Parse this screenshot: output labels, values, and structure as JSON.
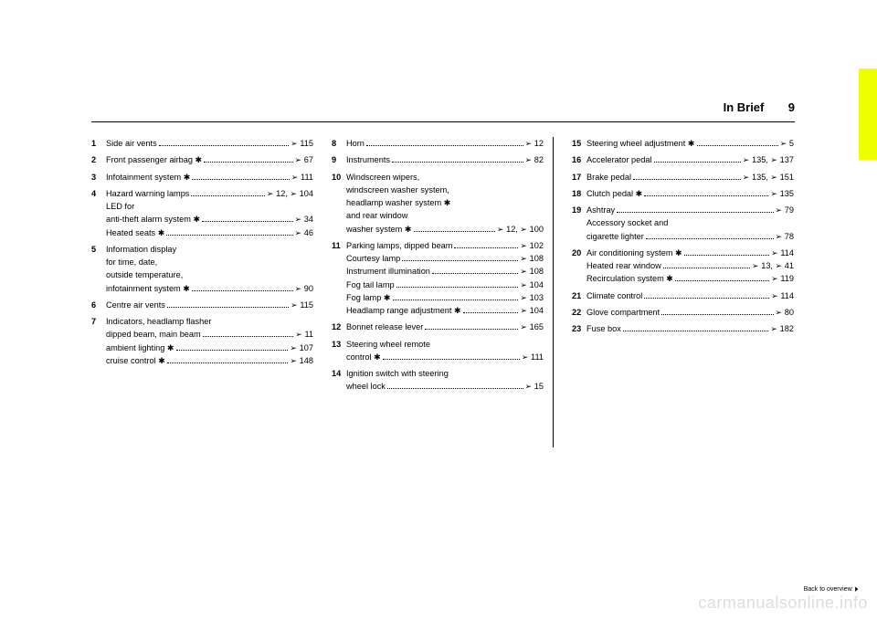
{
  "header": {
    "title": "In Brief",
    "page": "9"
  },
  "symbols": {
    "ref": "➢",
    "opt": "✱"
  },
  "columns": [
    [
      {
        "n": "1",
        "lines": [
          {
            "t": "Side air vents",
            "r": "➢ 115"
          }
        ]
      },
      {
        "n": "2",
        "lines": [
          {
            "t": "Front passenger airbag ✱",
            "r": "➢ 67"
          }
        ]
      },
      {
        "n": "3",
        "lines": [
          {
            "t": "Infotainment system ✱",
            "r": "➢ 111"
          }
        ]
      },
      {
        "n": "4",
        "lines": [
          {
            "t": "Hazard warning lamps",
            "r": "➢ 12, ➢ 104"
          },
          {
            "t": "LED for",
            "r": "",
            "nodots": true
          },
          {
            "t": "anti-theft alarm system ✱",
            "r": "➢ 34"
          },
          {
            "t": "Heated seats ✱",
            "r": "➢ 46"
          }
        ]
      },
      {
        "n": "5",
        "lines": [
          {
            "t": "Information display",
            "r": "",
            "nodots": true
          },
          {
            "t": "for time, date,",
            "r": "",
            "nodots": true
          },
          {
            "t": "outside temperature,",
            "r": "",
            "nodots": true
          },
          {
            "t": "infotainment system ✱",
            "r": "➢ 90"
          }
        ]
      },
      {
        "n": "6",
        "lines": [
          {
            "t": "Centre air vents",
            "r": "➢ 115"
          }
        ]
      },
      {
        "n": "7",
        "lines": [
          {
            "t": "Indicators, headlamp flasher",
            "r": "",
            "nodots": true
          },
          {
            "t": "dipped beam, main beam",
            "r": "➢ 11"
          },
          {
            "t": "ambient lighting ✱",
            "r": "➢ 107"
          },
          {
            "t": "cruise control ✱",
            "r": "➢ 148"
          }
        ]
      }
    ],
    [
      {
        "n": "8",
        "lines": [
          {
            "t": "Horn",
            "r": "➢ 12"
          }
        ]
      },
      {
        "n": "9",
        "lines": [
          {
            "t": "Instruments",
            "r": "➢ 82"
          }
        ]
      },
      {
        "n": "10",
        "lines": [
          {
            "t": "Windscreen wipers,",
            "r": "",
            "nodots": true
          },
          {
            "t": "windscreen washer system,",
            "r": "",
            "nodots": true
          },
          {
            "t": "headlamp washer system ✱",
            "r": "",
            "nodots": true
          },
          {
            "t": "and rear window",
            "r": "",
            "nodots": true
          },
          {
            "t": "washer system ✱",
            "r": "➢ 12, ➢ 100"
          }
        ]
      },
      {
        "n": "11",
        "lines": [
          {
            "t": "Parking lamps, dipped beam",
            "r": "➢ 102"
          },
          {
            "t": "Courtesy lamp",
            "r": "➢ 108"
          },
          {
            "t": "Instrument illumination",
            "r": "➢ 108"
          },
          {
            "t": "Fog tail lamp",
            "r": "➢ 104"
          },
          {
            "t": "Fog lamp ✱",
            "r": "➢ 103"
          },
          {
            "t": "Headlamp range adjustment ✱",
            "r": "➢ 104"
          }
        ]
      },
      {
        "n": "12",
        "lines": [
          {
            "t": "Bonnet release lever",
            "r": "➢ 165"
          }
        ]
      },
      {
        "n": "13",
        "lines": [
          {
            "t": "Steering wheel remote",
            "r": "",
            "nodots": true
          },
          {
            "t": "control ✱",
            "r": "➢ 111"
          }
        ]
      },
      {
        "n": "14",
        "lines": [
          {
            "t": "Ignition switch with steering",
            "r": "",
            "nodots": true
          },
          {
            "t": "wheel lock",
            "r": "➢ 15"
          }
        ]
      }
    ],
    [
      {
        "n": "15",
        "lines": [
          {
            "t": "Steering wheel adjustment ✱",
            "r": "➢ 5"
          }
        ]
      },
      {
        "n": "16",
        "lines": [
          {
            "t": "Accelerator pedal",
            "r": "➢ 135, ➢ 137"
          }
        ]
      },
      {
        "n": "17",
        "lines": [
          {
            "t": "Brake pedal",
            "r": "➢ 135, ➢ 151"
          }
        ]
      },
      {
        "n": "18",
        "lines": [
          {
            "t": "Clutch pedal ✱",
            "r": "➢ 135"
          }
        ]
      },
      {
        "n": "19",
        "lines": [
          {
            "t": "Ashtray",
            "r": "➢ 79"
          },
          {
            "t": "Accessory socket and",
            "r": "",
            "nodots": true
          },
          {
            "t": "cigarette lighter",
            "r": "➢ 78"
          }
        ]
      },
      {
        "n": "20",
        "lines": [
          {
            "t": "Air conditioning system ✱",
            "r": "➢ 114"
          },
          {
            "t": "Heated rear window",
            "r": "➢ 13, ➢ 41"
          },
          {
            "t": "Recirculation system ✱",
            "r": "➢ 119"
          }
        ]
      },
      {
        "n": "21",
        "lines": [
          {
            "t": "Climate control",
            "r": "➢ 114"
          }
        ]
      },
      {
        "n": "22",
        "lines": [
          {
            "t": "Glove compartment",
            "r": "➢ 80"
          }
        ]
      },
      {
        "n": "23",
        "lines": [
          {
            "t": "Fuse box",
            "r": "➢ 182"
          }
        ]
      }
    ]
  ],
  "footer": {
    "back": "Back to overview",
    "watermark": "carmanualsonline.info"
  }
}
